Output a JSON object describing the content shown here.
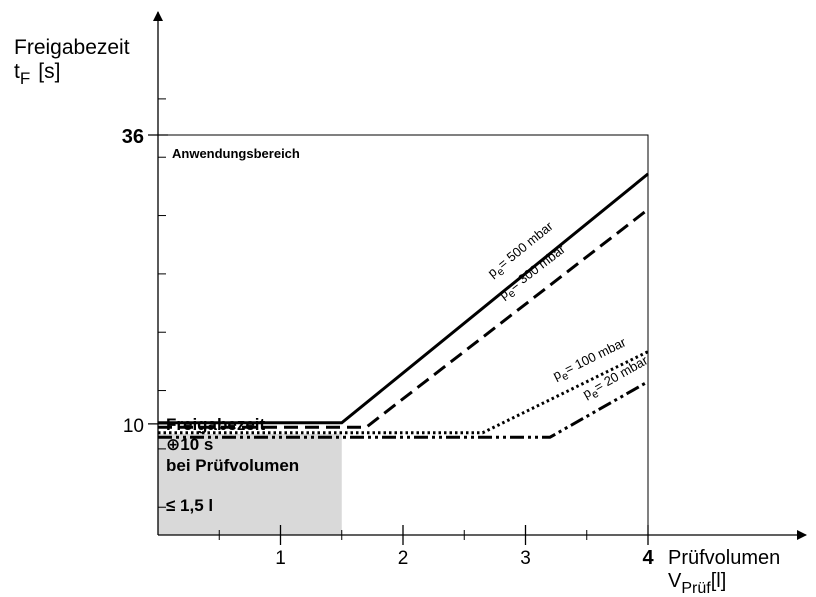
{
  "chart_data": {
    "type": "line",
    "ylabel": {
      "line1": "Freigabezeit",
      "sym": "t",
      "sub": "F",
      "unit": "[s]"
    },
    "xlabel": {
      "line1": "Prüfvolumen",
      "sym": "V",
      "sub": "Prüf",
      "unit": "[l]"
    },
    "x_ticks": [
      {
        "value": 1,
        "label": "1",
        "bold": false
      },
      {
        "value": 2,
        "label": "2",
        "bold": false
      },
      {
        "value": 3,
        "label": "3",
        "bold": false
      },
      {
        "value": 4,
        "label": "4",
        "bold": true
      }
    ],
    "y_ticks": [
      {
        "value": 10,
        "label": "10",
        "bold": false
      },
      {
        "value": 36,
        "label": "36",
        "bold": true
      }
    ],
    "xlim": [
      0,
      4
    ],
    "ylim": [
      0,
      36
    ],
    "region_label": "Anwendungsbereich",
    "shaded_box": {
      "x_max": 1.5,
      "lines": [
        "Freigabezeit",
        "⊕10 s",
        "bei Prüfvolumen",
        "≤ 1,5 l"
      ]
    },
    "series": [
      {
        "p": "p",
        "sub": "e",
        "rest": "= 500 mbar",
        "style": "solid",
        "x": [
          0,
          1.5,
          4
        ],
        "y": [
          10.1,
          10.1,
          32.5
        ]
      },
      {
        "p": "p",
        "sub": "e",
        "rest": "= 300 mbar",
        "style": "dash",
        "x": [
          0,
          1.7,
          4
        ],
        "y": [
          9.7,
          9.7,
          29.3
        ]
      },
      {
        "p": "p",
        "sub": "e",
        "rest": "= 100 mbar",
        "style": "dot",
        "x": [
          0,
          2.65,
          4
        ],
        "y": [
          9.2,
          9.2,
          16.5
        ]
      },
      {
        "p": "p",
        "sub": "e",
        "rest": "= 20 mbar",
        "style": "dashdotdot",
        "x": [
          0,
          3.2,
          4
        ],
        "y": [
          8.8,
          8.8,
          13.8
        ]
      }
    ]
  }
}
